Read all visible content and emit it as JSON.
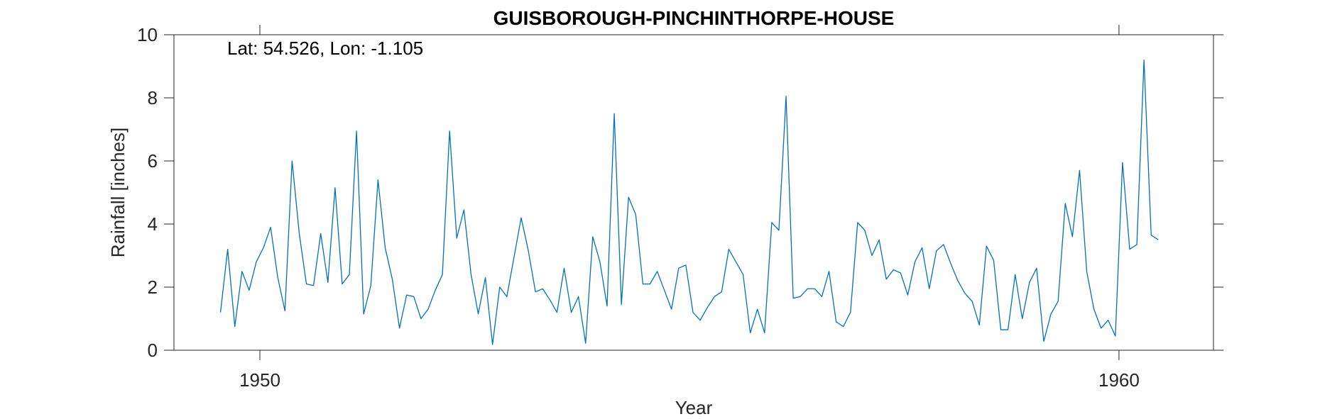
{
  "chart_data": {
    "type": "line",
    "title": "GUISBOROUGH-PINCHINTHORPE-HOUSE",
    "annotation": "Lat: 54.526, Lon: -1.105",
    "xlabel": "Year",
    "ylabel": "Rainfall [inches]",
    "xlim": [
      1949.0,
      1961.1
    ],
    "ylim": [
      0,
      10
    ],
    "xticks": [
      1950,
      1960
    ],
    "yticks": [
      0,
      2,
      4,
      6,
      8,
      10
    ],
    "line_color": "#0072BD",
    "grid": false,
    "series": [
      {
        "start_year": 1949.5417,
        "step": 0.08333,
        "values": [
          1.2,
          3.2,
          0.75,
          2.5,
          1.9,
          2.8,
          3.25,
          3.9,
          2.3,
          1.25,
          6.0,
          3.7,
          2.1,
          2.05,
          3.7,
          2.15,
          5.15,
          2.1,
          2.4,
          6.95,
          1.15,
          2.05,
          5.4,
          3.25,
          2.25,
          0.7,
          1.75,
          1.7,
          1.0,
          1.3,
          1.9,
          2.4,
          6.95,
          3.55,
          4.45,
          2.4,
          1.15,
          2.3,
          0.18,
          2.0,
          1.7,
          2.95,
          4.2,
          3.15,
          1.85,
          1.95,
          1.6,
          1.2,
          2.6,
          1.2,
          1.7,
          0.22,
          3.6,
          2.8,
          1.4,
          7.5,
          1.45,
          4.85,
          4.3,
          2.1,
          2.1,
          2.5,
          1.9,
          1.3,
          2.6,
          2.7,
          1.2,
          0.95,
          1.35,
          1.7,
          1.85,
          3.2,
          2.8,
          2.4,
          0.55,
          1.3,
          0.55,
          4.05,
          3.8,
          8.05,
          1.65,
          1.7,
          1.95,
          1.95,
          1.7,
          2.5,
          0.9,
          0.75,
          1.2,
          4.05,
          3.8,
          3.0,
          3.5,
          2.25,
          2.55,
          2.45,
          1.75,
          2.8,
          3.25,
          1.95,
          3.15,
          3.35,
          2.75,
          2.2,
          1.8,
          1.55,
          0.8,
          3.3,
          2.85,
          0.65,
          0.65,
          2.4,
          1.0,
          2.15,
          2.6,
          0.28,
          1.15,
          1.55,
          4.65,
          3.6,
          5.7,
          2.5,
          1.3,
          0.7,
          0.95,
          0.45,
          5.95,
          3.2,
          3.35,
          9.2,
          3.65,
          3.5
        ]
      }
    ]
  }
}
